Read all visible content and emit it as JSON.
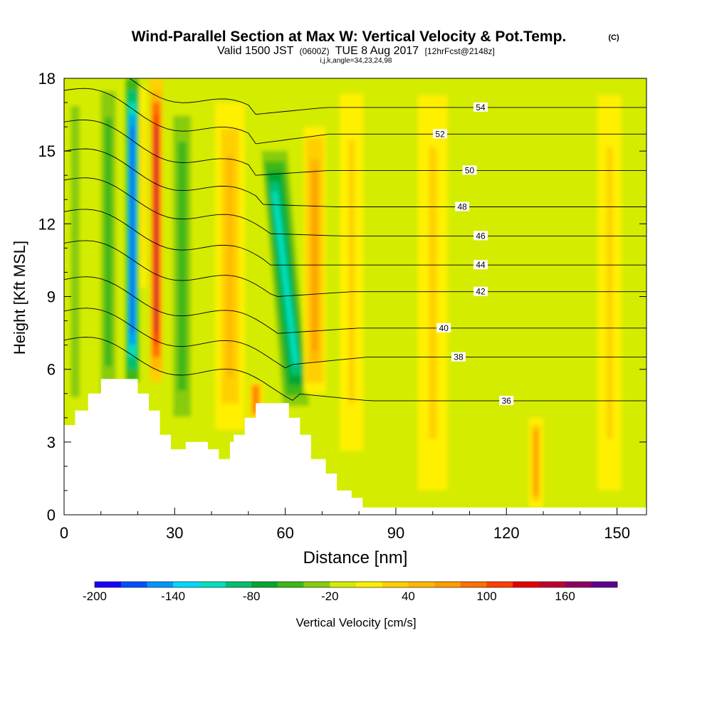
{
  "chart_data": {
    "type": "heatmap",
    "title": "Wind-Parallel Section at Max W: Vertical Velocity & Pot.Temp.",
    "title_mark": "(C)",
    "subtitle": {
      "main_a": "Valid 1500 JST",
      "small_a": "(0600Z)",
      "main_b": "TUE 8 Aug 2017",
      "small_b": "[12hrFcst@2148z]"
    },
    "subtitle2": "i,j,k,angle=34,23,24,98",
    "xlabel": "Distance [nm]",
    "ylabel": "Height [Kft MSL]",
    "xlim": [
      0,
      158
    ],
    "ylim": [
      0,
      18
    ],
    "xticks": [
      0,
      30,
      60,
      90,
      120,
      150
    ],
    "yticks": [
      0,
      3,
      6,
      9,
      12,
      15,
      18
    ],
    "colorbar": {
      "label": "Vertical Velocity [cm/s]",
      "min": -200,
      "max": 200,
      "step": 20,
      "tick_labels": [
        "-200",
        "-140",
        "-80",
        "-20",
        "40",
        "100",
        "160"
      ],
      "tick_values": [
        -200,
        -140,
        -80,
        -20,
        40,
        100,
        160
      ],
      "colors": [
        "#1a00ff",
        "#0050ff",
        "#0096ff",
        "#00d8ff",
        "#00e0c0",
        "#00c070",
        "#00a830",
        "#3cb818",
        "#88cc10",
        "#d4ec00",
        "#fff000",
        "#ffd000",
        "#ffb800",
        "#ff9c00",
        "#ff7000",
        "#ff4000",
        "#e80000",
        "#c00030",
        "#900060",
        "#600090"
      ]
    },
    "background_w_cms": -10,
    "w_features": [
      {
        "x": 18.5,
        "y_low": 5.5,
        "y_high": 18,
        "width": 3.5,
        "value": -190
      },
      {
        "x": 25,
        "y_low": 5.5,
        "y_high": 18,
        "width": 3.5,
        "value": 150
      },
      {
        "x": 21.5,
        "y_low": 9,
        "y_high": 18,
        "width": 2,
        "value": 20
      },
      {
        "x": 12,
        "y_low": 4.5,
        "y_high": 18,
        "width": 5,
        "value": -60
      },
      {
        "x": 32,
        "y_low": 3.5,
        "y_high": 17,
        "width": 6,
        "value": -50
      },
      {
        "x": 45,
        "y_low": 3.5,
        "y_high": 17,
        "width": 8,
        "value": 45
      },
      {
        "x": 52,
        "y_low": 4.0,
        "y_high": 5.5,
        "width": 4,
        "value": 95
      },
      {
        "x": 60,
        "y_low": 4.5,
        "y_high": 15,
        "width": 7,
        "value": -120
      },
      {
        "x": 68,
        "y_low": 5,
        "y_high": 16,
        "width": 6,
        "value": 70
      },
      {
        "x": 3,
        "y_low": 3.7,
        "y_high": 18,
        "width": 4,
        "value": -30
      },
      {
        "x": 78,
        "y_low": 2,
        "y_high": 18,
        "width": 8,
        "value": 25
      },
      {
        "x": 100,
        "y_low": 0.3,
        "y_high": 18,
        "width": 10,
        "value": 25
      },
      {
        "x": 128,
        "y_low": 0.3,
        "y_high": 4,
        "width": 4,
        "value": 60
      },
      {
        "x": 148,
        "y_low": 0.3,
        "y_high": 18,
        "width": 8,
        "value": 25
      }
    ],
    "terrain_kft": [
      {
        "x": 0,
        "h": 3.7
      },
      {
        "x": 3,
        "h": 4.3
      },
      {
        "x": 6.5,
        "h": 5.0
      },
      {
        "x": 10,
        "h": 5.6
      },
      {
        "x": 20,
        "h": 5.0
      },
      {
        "x": 23,
        "h": 4.3
      },
      {
        "x": 26,
        "h": 3.3
      },
      {
        "x": 29,
        "h": 2.7
      },
      {
        "x": 33,
        "h": 3.0
      },
      {
        "x": 39,
        "h": 2.7
      },
      {
        "x": 42,
        "h": 2.3
      },
      {
        "x": 45,
        "h": 3.0
      },
      {
        "x": 46,
        "h": 3.3
      },
      {
        "x": 49,
        "h": 4.0
      },
      {
        "x": 52,
        "h": 4.6
      },
      {
        "x": 61,
        "h": 4.0
      },
      {
        "x": 64,
        "h": 3.3
      },
      {
        "x": 67,
        "h": 2.3
      },
      {
        "x": 71,
        "h": 1.7
      },
      {
        "x": 74,
        "h": 1.0
      },
      {
        "x": 78,
        "h": 0.7
      },
      {
        "x": 81,
        "h": 0.3
      },
      {
        "x": 158,
        "h": 0.3
      }
    ],
    "isentropes": [
      {
        "label": "36",
        "label_x": 120,
        "y_east": 4.7,
        "x_front": 63,
        "y_front": 5.0
      },
      {
        "label": "38",
        "label_x": 107,
        "y_east": 6.5,
        "x_front": 62,
        "y_front": 6.2
      },
      {
        "label": "40",
        "label_x": 103,
        "y_east": 7.7,
        "x_front": 60,
        "y_front": 7.5
      },
      {
        "label": "42",
        "label_x": 113,
        "y_east": 9.2,
        "x_front": 58,
        "y_front": 9.0
      },
      {
        "label": "44",
        "label_x": 113,
        "y_east": 10.3,
        "x_front": 56,
        "y_front": 10.3
      },
      {
        "label": "46",
        "label_x": 113,
        "y_east": 11.5,
        "x_front": 55,
        "y_front": 11.6
      },
      {
        "label": "48",
        "label_x": 108,
        "y_east": 12.7,
        "x_front": 54,
        "y_front": 12.8
      },
      {
        "label": "50",
        "label_x": 110,
        "y_east": 14.2,
        "x_front": 52,
        "y_front": 14.0
      },
      {
        "label": "52",
        "label_x": 102,
        "y_east": 15.7,
        "x_front": 52,
        "y_front": 15.3
      },
      {
        "label": "54",
        "label_x": 113,
        "y_east": 16.8,
        "x_front": 51,
        "y_front": 16.5
      }
    ]
  }
}
